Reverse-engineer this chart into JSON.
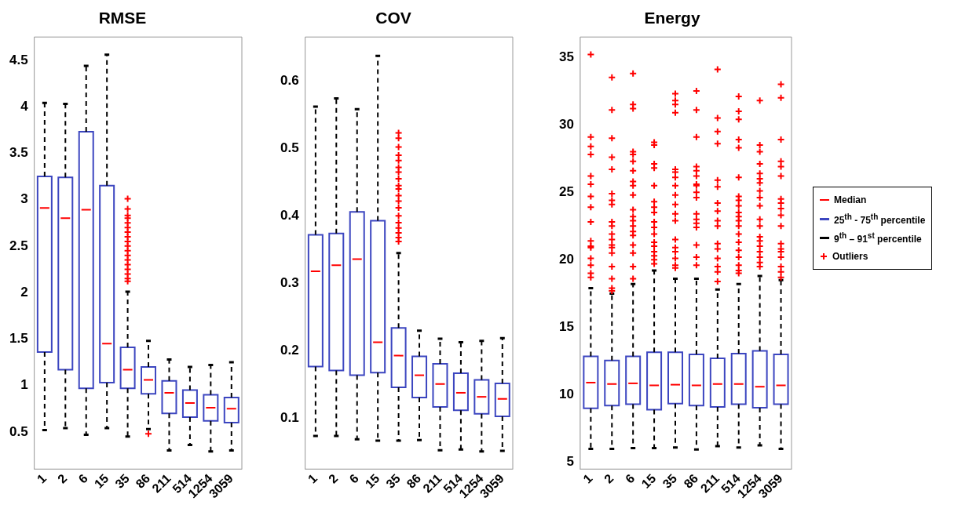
{
  "chart_data": [
    {
      "type": "box",
      "title": "RMSE",
      "categories": [
        "1",
        "2",
        "6",
        "15",
        "35",
        "86",
        "211",
        "514",
        "1254",
        "3059"
      ],
      "ylim": [
        0.1,
        4.75
      ],
      "yticks": [
        0.5,
        1,
        1.5,
        2,
        2.5,
        3,
        3.5,
        4,
        4.5
      ],
      "grid": false,
      "series": [
        {
          "color": "#3c46c0",
          "boxes": [
            {
              "low": 0.52,
              "q1": 1.36,
              "median": 2.91,
              "q3": 3.25,
              "high": 4.04
            },
            {
              "low": 0.54,
              "q1": 1.17,
              "median": 2.8,
              "q3": 3.24,
              "high": 4.03
            },
            {
              "low": 0.47,
              "q1": 0.97,
              "median": 2.89,
              "q3": 3.73,
              "high": 4.44
            },
            {
              "low": 0.54,
              "q1": 1.03,
              "median": 1.45,
              "q3": 3.15,
              "high": 4.56
            },
            {
              "low": 0.45,
              "q1": 0.97,
              "median": 1.17,
              "q3": 1.41,
              "high": 2.01,
              "outliers": [
                3.01,
                2.9,
                2.83,
                2.8,
                2.75,
                2.7,
                2.65,
                2.6,
                2.55,
                2.5,
                2.45,
                2.4,
                2.35,
                2.3,
                2.25,
                2.2,
                2.15,
                2.12
              ]
            },
            {
              "low": 0.53,
              "q1": 0.91,
              "median": 1.06,
              "q3": 1.2,
              "high": 1.48,
              "outliers": [
                0.48
              ]
            },
            {
              "low": 0.3,
              "q1": 0.7,
              "median": 0.92,
              "q3": 1.05,
              "high": 1.28
            },
            {
              "low": 0.36,
              "q1": 0.66,
              "median": 0.81,
              "q3": 0.95,
              "high": 1.2
            },
            {
              "low": 0.29,
              "q1": 0.62,
              "median": 0.76,
              "q3": 0.9,
              "high": 1.22
            },
            {
              "low": 0.3,
              "q1": 0.6,
              "median": 0.75,
              "q3": 0.87,
              "high": 1.25
            }
          ]
        }
      ]
    },
    {
      "type": "box",
      "title": "COV",
      "categories": [
        "1",
        "2",
        "6",
        "15",
        "35",
        "86",
        "211",
        "514",
        "1254",
        "3059"
      ],
      "ylim": [
        0.025,
        0.665
      ],
      "yticks": [
        0.1,
        0.2,
        0.3,
        0.4,
        0.5,
        0.6
      ],
      "grid": false,
      "series": [
        {
          "color": "#3c46c0",
          "boxes": [
            {
              "low": 0.074,
              "q1": 0.177,
              "median": 0.318,
              "q3": 0.372,
              "high": 0.562
            },
            {
              "low": 0.074,
              "q1": 0.171,
              "median": 0.327,
              "q3": 0.374,
              "high": 0.574
            },
            {
              "low": 0.069,
              "q1": 0.164,
              "median": 0.336,
              "q3": 0.406,
              "high": 0.558
            },
            {
              "low": 0.067,
              "q1": 0.168,
              "median": 0.213,
              "q3": 0.393,
              "high": 0.637
            },
            {
              "low": 0.067,
              "q1": 0.146,
              "median": 0.193,
              "q3": 0.234,
              "high": 0.345,
              "outliers": [
                0.523,
                0.515,
                0.502,
                0.49,
                0.482,
                0.472,
                0.465,
                0.455,
                0.445,
                0.44,
                0.43,
                0.422,
                0.412,
                0.4,
                0.39,
                0.382,
                0.375,
                0.368,
                0.362
              ]
            },
            {
              "low": 0.068,
              "q1": 0.131,
              "median": 0.164,
              "q3": 0.192,
              "high": 0.23
            },
            {
              "low": 0.053,
              "q1": 0.117,
              "median": 0.151,
              "q3": 0.181,
              "high": 0.218
            },
            {
              "low": 0.054,
              "q1": 0.112,
              "median": 0.138,
              "q3": 0.167,
              "high": 0.213
            },
            {
              "low": 0.051,
              "q1": 0.107,
              "median": 0.132,
              "q3": 0.157,
              "high": 0.215
            },
            {
              "low": 0.052,
              "q1": 0.103,
              "median": 0.129,
              "q3": 0.152,
              "high": 0.219
            }
          ]
        }
      ]
    },
    {
      "type": "box",
      "title": "Energy",
      "categories": [
        "1",
        "2",
        "6",
        "15",
        "35",
        "86",
        "211",
        "514",
        "1254",
        "3059"
      ],
      "ylim": [
        4.5,
        36.5
      ],
      "yticks": [
        5,
        10,
        15,
        20,
        25,
        30,
        35
      ],
      "grid": false,
      "legend": "right",
      "annotations": [
        "Median",
        "9$^{th}$ – 91$^{st}$ percentile",
        "Outliers"
      ],
      "series": [
        {
          "name": "25$^{th}$ - 75$^{th}$ percentile",
          "color": "#3c46c0",
          "boxes": [
            {
              "low": 6.0,
              "q1": 9.0,
              "median": 10.9,
              "q3": 12.85,
              "high": 17.9,
              "outliers": [
                35.2,
                29.1,
                28.4,
                27.8,
                26.2,
                25.6,
                24.7,
                23.9,
                22.8,
                21.4,
                21.0,
                20.9,
                20.1,
                19.6,
                19.0,
                18.7
              ]
            },
            {
              "low": 6.0,
              "q1": 9.2,
              "median": 10.8,
              "q3": 12.55,
              "high": 17.5,
              "outliers": [
                33.5,
                31.1,
                29.0,
                27.6,
                26.7,
                24.9,
                24.4,
                24.1,
                22.8,
                22.5,
                21.9,
                21.5,
                21.1,
                20.9,
                20.5,
                19.5,
                18.6,
                17.9,
                17.7
              ]
            },
            {
              "low": 6.05,
              "q1": 9.3,
              "median": 10.85,
              "q3": 12.85,
              "high": 18.2,
              "outliers": [
                33.8,
                31.5,
                31.2,
                28.0,
                27.8,
                27.3,
                26.6,
                25.8,
                25.5,
                24.8,
                23.7,
                23.2,
                22.9,
                22.5,
                22.1,
                21.8,
                21.1,
                20.5,
                19.5,
                18.6
              ]
            },
            {
              "low": 6.05,
              "q1": 8.9,
              "median": 10.7,
              "q3": 13.15,
              "high": 19.2,
              "outliers": [
                28.7,
                28.5,
                27.1,
                26.8,
                25.5,
                24.3,
                23.9,
                23.5,
                22.8,
                22.4,
                21.9,
                21.3,
                21.0,
                20.6,
                20.3,
                20.0,
                19.7
              ]
            },
            {
              "low": 6.1,
              "q1": 9.35,
              "median": 10.75,
              "q3": 13.15,
              "high": 18.6,
              "outliers": [
                32.3,
                31.8,
                31.5,
                30.9,
                26.7,
                26.5,
                26.1,
                25.5,
                24.8,
                24.1,
                23.4,
                22.9,
                21.5,
                20.9,
                20.6,
                20.1,
                19.6,
                19.4
              ]
            },
            {
              "low": 5.95,
              "q1": 9.2,
              "median": 10.7,
              "q3": 13.0,
              "high": 18.6,
              "outliers": [
                32.5,
                31.1,
                29.1,
                26.9,
                26.6,
                26.2,
                25.6,
                25.5,
                25.0,
                24.6,
                23.4,
                23.0,
                22.7,
                22.4,
                21.1,
                20.2,
                19.6
              ]
            },
            {
              "low": 6.2,
              "q1": 9.1,
              "median": 10.8,
              "q3": 12.7,
              "high": 17.8,
              "outliers": [
                34.1,
                30.5,
                29.5,
                28.6,
                25.9,
                25.4,
                24.2,
                23.6,
                22.9,
                22.5,
                21.2,
                20.8,
                20.1,
                19.5,
                19.1,
                18.4
              ]
            },
            {
              "low": 6.1,
              "q1": 9.3,
              "median": 10.8,
              "q3": 13.05,
              "high": 18.2,
              "outliers": [
                32.1,
                31.0,
                30.4,
                28.9,
                28.3,
                26.1,
                24.7,
                24.4,
                24.0,
                23.5,
                23.2,
                22.9,
                22.5,
                21.9,
                21.3,
                20.7,
                20.2,
                19.6,
                19.2,
                19.0
              ]
            },
            {
              "low": 6.25,
              "q1": 9.05,
              "median": 10.6,
              "q3": 13.25,
              "high": 18.8,
              "outliers": [
                31.8,
                28.5,
                28.0,
                27.1,
                26.4,
                26.0,
                25.7,
                25.1,
                24.6,
                24.0,
                23.0,
                22.5,
                21.7,
                21.4,
                21.0,
                20.6,
                20.2,
                19.8,
                19.5
              ]
            },
            {
              "low": 6.0,
              "q1": 9.3,
              "median": 10.7,
              "q3": 13.0,
              "high": 18.5,
              "outliers": [
                33.0,
                32.0,
                28.9,
                27.3,
                26.9,
                26.2,
                24.5,
                24.2,
                23.8,
                23.3,
                22.5,
                21.2,
                20.8,
                20.6,
                20.2,
                19.5,
                19.1,
                18.7
              ]
            }
          ]
        }
      ]
    }
  ]
}
